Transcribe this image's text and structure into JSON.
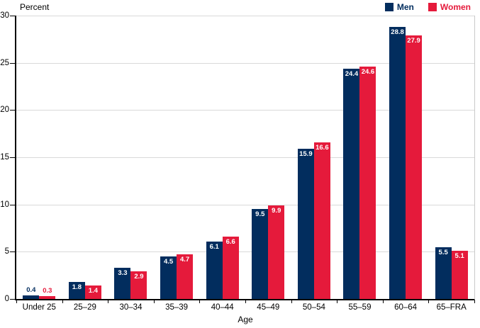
{
  "colors": {
    "men": "#022d5e",
    "women": "#e51a3b",
    "gridline": "#d9d9d9",
    "axis": "#000000",
    "plot_border": "#c9c9c9",
    "label_inside": "#ffffff"
  },
  "chart_data": {
    "type": "bar",
    "title": "",
    "ylabel": "Percent",
    "xlabel": "Age",
    "categories": [
      "Under 25",
      "25–29",
      "30–34",
      "35–39",
      "40–44",
      "45–49",
      "50–54",
      "55–59",
      "60–64",
      "65–FRA"
    ],
    "series": [
      {
        "name": "Men",
        "color": "#022d5e",
        "values": [
          0.4,
          1.8,
          3.3,
          4.5,
          6.1,
          9.5,
          15.9,
          24.4,
          28.8,
          5.5
        ]
      },
      {
        "name": "Women",
        "color": "#e51a3b",
        "values": [
          0.3,
          1.4,
          2.9,
          4.7,
          6.6,
          9.9,
          16.6,
          24.6,
          27.9,
          5.1
        ]
      }
    ],
    "ylim": [
      0,
      30
    ],
    "yticks": [
      0,
      5,
      10,
      15,
      20,
      25,
      30
    ],
    "grid": true,
    "legend_position": "top-right",
    "value_labels": true
  }
}
